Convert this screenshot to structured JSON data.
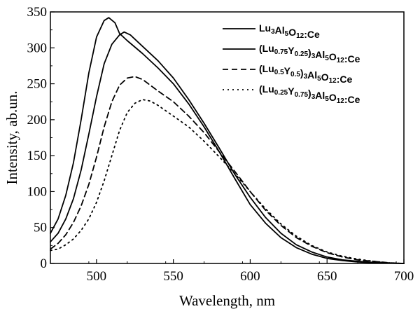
{
  "chart_data": {
    "type": "line",
    "xlabel": "Wavelength, nm",
    "ylabel": "Intensity, ab.un.",
    "xlim": [
      470,
      700
    ],
    "ylim": [
      0,
      350
    ],
    "xticks": [
      500,
      550,
      600,
      650,
      700
    ],
    "yticks": [
      0,
      50,
      100,
      150,
      200,
      250,
      300,
      350
    ],
    "legend_position": "top-right",
    "grid": false,
    "series": [
      {
        "name": "Lu3Al5O12:Ce",
        "name_parts": [
          [
            "Lu",
            "n"
          ],
          [
            "3",
            "sub"
          ],
          [
            "Al",
            "n"
          ],
          [
            "5",
            "sub"
          ],
          [
            "O",
            "n"
          ],
          [
            "12",
            "sub"
          ],
          [
            ":Ce",
            "n"
          ]
        ],
        "line_style": "solid",
        "points": [
          [
            470,
            42
          ],
          [
            475,
            62
          ],
          [
            480,
            95
          ],
          [
            485,
            140
          ],
          [
            490,
            200
          ],
          [
            495,
            265
          ],
          [
            500,
            315
          ],
          [
            505,
            338
          ],
          [
            508,
            342
          ],
          [
            512,
            335
          ],
          [
            515,
            320
          ],
          [
            520,
            310
          ],
          [
            530,
            292
          ],
          [
            540,
            272
          ],
          [
            550,
            250
          ],
          [
            560,
            222
          ],
          [
            570,
            190
          ],
          [
            580,
            155
          ],
          [
            590,
            118
          ],
          [
            600,
            82
          ],
          [
            610,
            56
          ],
          [
            620,
            36
          ],
          [
            630,
            22
          ],
          [
            640,
            13
          ],
          [
            650,
            7
          ],
          [
            660,
            4
          ],
          [
            670,
            2
          ],
          [
            680,
            1
          ],
          [
            690,
            0.5
          ],
          [
            700,
            0
          ]
        ]
      },
      {
        "name": "(Lu0.75Y0.25)3Al5O12:Ce",
        "name_parts": [
          [
            "(Lu",
            "n"
          ],
          [
            "0.75",
            "sub"
          ],
          [
            "Y",
            "n"
          ],
          [
            "0.25",
            "sub"
          ],
          [
            ")",
            "n"
          ],
          [
            "3",
            "sub"
          ],
          [
            "Al",
            "n"
          ],
          [
            "5",
            "sub"
          ],
          [
            "O",
            "n"
          ],
          [
            "12",
            "sub"
          ],
          [
            ":Ce",
            "n"
          ]
        ],
        "line_style": "solid",
        "points": [
          [
            470,
            30
          ],
          [
            475,
            42
          ],
          [
            480,
            62
          ],
          [
            485,
            90
          ],
          [
            490,
            130
          ],
          [
            495,
            180
          ],
          [
            500,
            232
          ],
          [
            505,
            278
          ],
          [
            510,
            305
          ],
          [
            515,
            318
          ],
          [
            518,
            322
          ],
          [
            522,
            318
          ],
          [
            530,
            302
          ],
          [
            540,
            282
          ],
          [
            550,
            258
          ],
          [
            560,
            228
          ],
          [
            570,
            195
          ],
          [
            580,
            160
          ],
          [
            590,
            124
          ],
          [
            600,
            92
          ],
          [
            610,
            64
          ],
          [
            620,
            42
          ],
          [
            630,
            26
          ],
          [
            640,
            16
          ],
          [
            650,
            9
          ],
          [
            660,
            5
          ],
          [
            670,
            3
          ],
          [
            680,
            1.5
          ],
          [
            690,
            0.5
          ],
          [
            700,
            0
          ]
        ]
      },
      {
        "name": "(Lu0.5Y0.5)3Al5O12:Ce",
        "name_parts": [
          [
            "(Lu",
            "n"
          ],
          [
            "0.5",
            "sub"
          ],
          [
            "Y",
            "n"
          ],
          [
            "0.5",
            "sub"
          ],
          [
            ")",
            "n"
          ],
          [
            "3",
            "sub"
          ],
          [
            "Al",
            "n"
          ],
          [
            "5",
            "sub"
          ],
          [
            "O",
            "n"
          ],
          [
            "12",
            "sub"
          ],
          [
            ":Ce",
            "n"
          ]
        ],
        "line_style": "dashed",
        "points": [
          [
            470,
            20
          ],
          [
            475,
            28
          ],
          [
            480,
            40
          ],
          [
            485,
            57
          ],
          [
            490,
            80
          ],
          [
            495,
            110
          ],
          [
            500,
            148
          ],
          [
            505,
            190
          ],
          [
            510,
            225
          ],
          [
            515,
            248
          ],
          [
            520,
            258
          ],
          [
            525,
            260
          ],
          [
            530,
            256
          ],
          [
            540,
            240
          ],
          [
            550,
            225
          ],
          [
            560,
            205
          ],
          [
            570,
            182
          ],
          [
            580,
            155
          ],
          [
            590,
            128
          ],
          [
            600,
            100
          ],
          [
            610,
            74
          ],
          [
            620,
            53
          ],
          [
            630,
            36
          ],
          [
            640,
            24
          ],
          [
            650,
            15
          ],
          [
            660,
            9
          ],
          [
            670,
            5
          ],
          [
            680,
            3
          ],
          [
            690,
            1
          ],
          [
            700,
            0
          ]
        ]
      },
      {
        "name": "(Lu0.25Y0.75)3Al5O12:Ce",
        "name_parts": [
          [
            "(Lu",
            "n"
          ],
          [
            "0.25",
            "sub"
          ],
          [
            "Y",
            "n"
          ],
          [
            "0.75",
            "sub"
          ],
          [
            ")",
            "n"
          ],
          [
            "3",
            "sub"
          ],
          [
            "Al",
            "n"
          ],
          [
            "5",
            "sub"
          ],
          [
            "O",
            "n"
          ],
          [
            "12",
            "sub"
          ],
          [
            ":Ce",
            "n"
          ]
        ],
        "line_style": "dotted",
        "points": [
          [
            470,
            18
          ],
          [
            475,
            20
          ],
          [
            480,
            26
          ],
          [
            485,
            34
          ],
          [
            490,
            46
          ],
          [
            495,
            62
          ],
          [
            500,
            85
          ],
          [
            505,
            115
          ],
          [
            510,
            150
          ],
          [
            515,
            185
          ],
          [
            520,
            210
          ],
          [
            525,
            223
          ],
          [
            530,
            228
          ],
          [
            535,
            226
          ],
          [
            540,
            220
          ],
          [
            550,
            205
          ],
          [
            560,
            190
          ],
          [
            570,
            170
          ],
          [
            580,
            148
          ],
          [
            590,
            125
          ],
          [
            600,
            100
          ],
          [
            610,
            76
          ],
          [
            620,
            55
          ],
          [
            630,
            38
          ],
          [
            640,
            25
          ],
          [
            650,
            16
          ],
          [
            660,
            10
          ],
          [
            670,
            6
          ],
          [
            680,
            3
          ],
          [
            690,
            1
          ],
          [
            700,
            0
          ]
        ]
      }
    ]
  }
}
